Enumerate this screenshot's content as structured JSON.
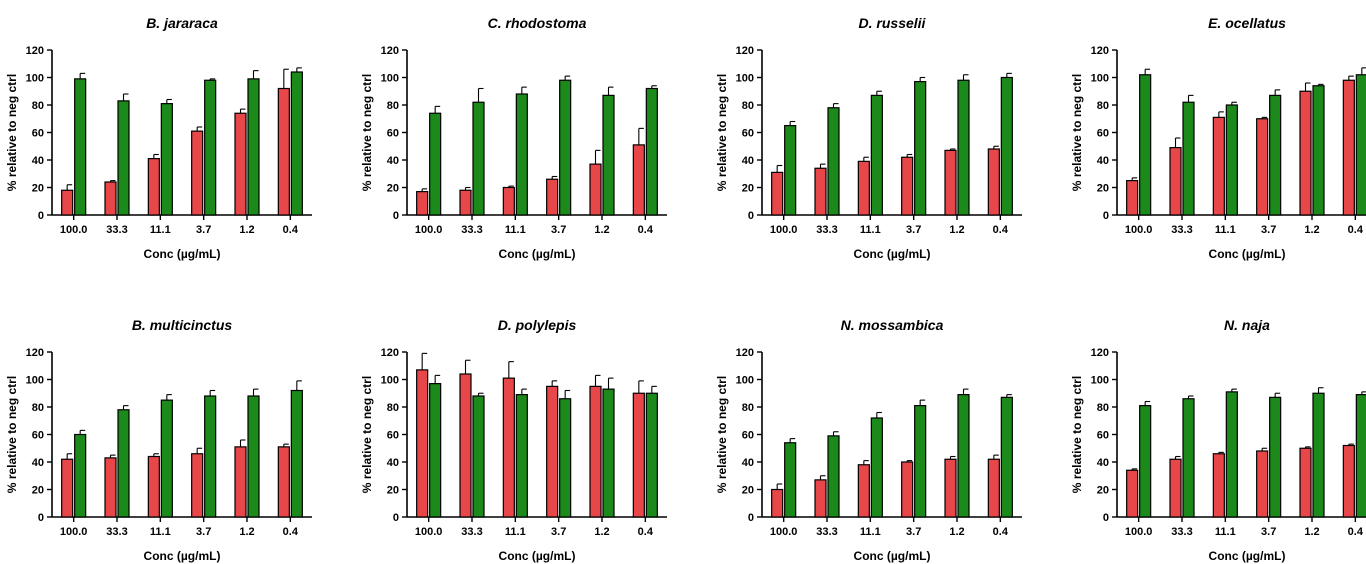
{
  "figure": {
    "x_axis_label": "Conc (µg/mL)",
    "y_axis_label": "% relative to neg ctrl"
  },
  "colors": {
    "series_a": "#e8474a",
    "series_b": "#1b8a1b",
    "axis": "#000000"
  },
  "chart_data": [
    {
      "type": "bar",
      "title": "B. jararaca",
      "xlabel": "Conc (µg/mL)",
      "ylabel": "% relative to neg ctrl",
      "categories": [
        "100.0",
        "33.3",
        "11.1",
        "3.7",
        "1.2",
        "0.4"
      ],
      "ylim": [
        0,
        120
      ],
      "yticks": [
        0,
        20,
        40,
        60,
        80,
        100,
        120
      ],
      "series": [
        {
          "values": [
            18,
            24,
            41,
            61,
            74,
            92
          ],
          "errors": [
            4,
            1,
            3,
            3,
            3,
            14
          ]
        },
        {
          "values": [
            99,
            83,
            81,
            98,
            99,
            104
          ],
          "errors": [
            4,
            5,
            3,
            1,
            6,
            3
          ]
        }
      ]
    },
    {
      "type": "bar",
      "title": "C. rhodostoma",
      "xlabel": "Conc (µg/mL)",
      "ylabel": "% relative to neg ctrl",
      "categories": [
        "100.0",
        "33.3",
        "11.1",
        "3.7",
        "1.2",
        "0.4"
      ],
      "ylim": [
        0,
        120
      ],
      "yticks": [
        0,
        20,
        40,
        60,
        80,
        100,
        120
      ],
      "series": [
        {
          "values": [
            17,
            18,
            20,
            26,
            37,
            51
          ],
          "errors": [
            2,
            2,
            1,
            2,
            10,
            12
          ]
        },
        {
          "values": [
            74,
            82,
            88,
            98,
            87,
            92
          ],
          "errors": [
            5,
            10,
            5,
            3,
            6,
            2
          ]
        }
      ]
    },
    {
      "type": "bar",
      "title": "D. russelii",
      "xlabel": "Conc (µg/mL)",
      "ylabel": "% relative to neg ctrl",
      "categories": [
        "100.0",
        "33.3",
        "11.1",
        "3.7",
        "1.2",
        "0.4"
      ],
      "ylim": [
        0,
        120
      ],
      "yticks": [
        0,
        20,
        40,
        60,
        80,
        100,
        120
      ],
      "series": [
        {
          "values": [
            31,
            34,
            39,
            42,
            47,
            48
          ],
          "errors": [
            5,
            3,
            3,
            2,
            1,
            2
          ]
        },
        {
          "values": [
            65,
            78,
            87,
            97,
            98,
            100
          ],
          "errors": [
            3,
            3,
            3,
            3,
            4,
            3
          ]
        }
      ]
    },
    {
      "type": "bar",
      "title": "E. ocellatus",
      "xlabel": "Conc (µg/mL)",
      "ylabel": "% relative to neg ctrl",
      "categories": [
        "100.0",
        "33.3",
        "11.1",
        "3.7",
        "1.2",
        "0.4"
      ],
      "ylim": [
        0,
        120
      ],
      "yticks": [
        0,
        20,
        40,
        60,
        80,
        100,
        120
      ],
      "series": [
        {
          "values": [
            25,
            49,
            71,
            70,
            90,
            98
          ],
          "errors": [
            2,
            7,
            4,
            1,
            6,
            3
          ]
        },
        {
          "values": [
            102,
            82,
            80,
            87,
            94,
            102
          ],
          "errors": [
            4,
            5,
            2,
            4,
            1,
            5
          ]
        }
      ]
    },
    {
      "type": "bar",
      "title": "B. multicinctus",
      "xlabel": "Conc (µg/mL)",
      "ylabel": "% relative to neg ctrl",
      "categories": [
        "100.0",
        "33.3",
        "11.1",
        "3.7",
        "1.2",
        "0.4"
      ],
      "ylim": [
        0,
        120
      ],
      "yticks": [
        0,
        20,
        40,
        60,
        80,
        100,
        120
      ],
      "series": [
        {
          "values": [
            42,
            43,
            44,
            46,
            51,
            51
          ],
          "errors": [
            4,
            2,
            2,
            4,
            5,
            2
          ]
        },
        {
          "values": [
            60,
            78,
            85,
            88,
            88,
            92
          ],
          "errors": [
            3,
            3,
            4,
            4,
            5,
            7
          ]
        }
      ]
    },
    {
      "type": "bar",
      "title": "D. polylepis",
      "xlabel": "Conc (µg/mL)",
      "ylabel": "% relative to neg ctrl",
      "categories": [
        "100.0",
        "33.3",
        "11.1",
        "3.7",
        "1.2",
        "0.4"
      ],
      "ylim": [
        0,
        120
      ],
      "yticks": [
        0,
        20,
        40,
        60,
        80,
        100,
        120
      ],
      "series": [
        {
          "values": [
            107,
            104,
            101,
            95,
            95,
            90
          ],
          "errors": [
            12,
            10,
            12,
            4,
            8,
            9
          ]
        },
        {
          "values": [
            97,
            88,
            89,
            86,
            93,
            90
          ],
          "errors": [
            6,
            2,
            4,
            6,
            8,
            5
          ]
        }
      ]
    },
    {
      "type": "bar",
      "title": "N. mossambica",
      "xlabel": "Conc (µg/mL)",
      "ylabel": "% relative to neg ctrl",
      "categories": [
        "100.0",
        "33.3",
        "11.1",
        "3.7",
        "1.2",
        "0.4"
      ],
      "ylim": [
        0,
        120
      ],
      "yticks": [
        0,
        20,
        40,
        60,
        80,
        100,
        120
      ],
      "series": [
        {
          "values": [
            20,
            27,
            38,
            40,
            42,
            42
          ],
          "errors": [
            4,
            3,
            3,
            1,
            2,
            3
          ]
        },
        {
          "values": [
            54,
            59,
            72,
            81,
            89,
            87
          ],
          "errors": [
            3,
            3,
            4,
            4,
            4,
            2
          ]
        }
      ]
    },
    {
      "type": "bar",
      "title": "N. naja",
      "xlabel": "Conc (µg/mL)",
      "ylabel": "% relative to neg ctrl",
      "categories": [
        "100.0",
        "33.3",
        "11.1",
        "3.7",
        "1.2",
        "0.4"
      ],
      "ylim": [
        0,
        120
      ],
      "yticks": [
        0,
        20,
        40,
        60,
        80,
        100,
        120
      ],
      "series": [
        {
          "values": [
            34,
            42,
            46,
            48,
            50,
            52
          ],
          "errors": [
            1,
            2,
            1,
            2,
            1,
            1
          ]
        },
        {
          "values": [
            81,
            86,
            91,
            87,
            90,
            89
          ],
          "errors": [
            3,
            2,
            2,
            3,
            4,
            2
          ]
        }
      ]
    }
  ]
}
